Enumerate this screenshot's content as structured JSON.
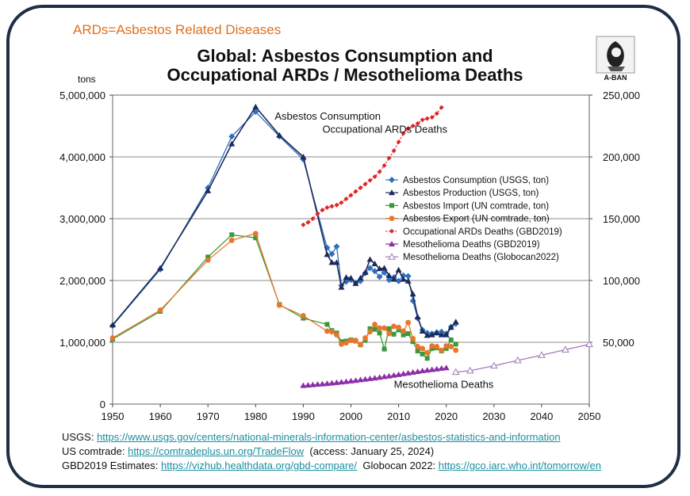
{
  "note": "ARDs=Asbestos Related Diseases",
  "title_line1": "Global: Asbestos Consumption and",
  "title_line2": "Occupational ARDs / Mesothelioma Deaths",
  "logo_text": "A-BAN",
  "sources": {
    "usgs_label": "USGS: ",
    "usgs_url": "https://www.usgs.gov/centers/national-minerals-information-center/asbestos-statistics-and-information",
    "comtrade_label": "US comtrade: ",
    "comtrade_url": "https://comtradeplus.un.org/TradeFlow",
    "comtrade_access": "  (access: January 25, 2024)",
    "gbd_label": "GBD2019 Estimates: ",
    "gbd_url": "https://vizhub.healthdata.org/gbd-compare/",
    "globocan_label": "  Globocan 2022: ",
    "globocan_url": "https://gco.iarc.who.int/tomorrow/en"
  },
  "colors": {
    "consumption": "#2f6fbd",
    "production": "#1c2a5a",
    "import": "#3a9a3a",
    "export": "#e8762d",
    "ards": "#e02424",
    "meso": "#8b2da8",
    "globocan": "#a07ab8",
    "frame": "#1e2e44",
    "note": "#e0701e"
  },
  "chart_data": {
    "type": "line",
    "left_axis_unit": "tons",
    "yleft_lim": [
      0,
      5000000
    ],
    "yright_lim": [
      0,
      250000
    ],
    "xlim": [
      1950,
      2050
    ],
    "x_ticks": [
      1950,
      1960,
      1970,
      1980,
      1990,
      2000,
      2010,
      2020,
      2030,
      2040,
      2050
    ],
    "yleft_ticks": [
      0,
      1000000,
      2000000,
      3000000,
      4000000,
      5000000
    ],
    "yleft_tick_labels": [
      "0",
      "1,000,000",
      "2,000,000",
      "3,000,000",
      "4,000,000",
      "5,000,000"
    ],
    "yright_ticks": [
      50000,
      100000,
      150000,
      200000,
      250000
    ],
    "yright_tick_labels": [
      "50,000",
      "100,000",
      "150,000",
      "200,000",
      "250,000"
    ],
    "grid": "horizontal",
    "legend_position": "center-right",
    "annotations": [
      {
        "text": "Asbestos Consumption",
        "x": 1984,
        "y": 4600000
      },
      {
        "text": "Occupational ARDs Deaths",
        "x": 1994,
        "y": 4390000
      },
      {
        "text": "Mesothelioma Deaths",
        "x": 2009,
        "y": 260000
      }
    ],
    "series": [
      {
        "name": "Asbestos Consumption (USGS, ton)",
        "axis": "left",
        "style": "consumption",
        "marker": "diamond",
        "x": [
          1950,
          1960,
          1970,
          1975,
          1980,
          1985,
          1990,
          1995,
          1996,
          1997,
          1998,
          1999,
          2000,
          2001,
          2002,
          2003,
          2004,
          2005,
          2006,
          2007,
          2008,
          2009,
          2010,
          2011,
          2012,
          2013,
          2014,
          2015,
          2016,
          2017,
          2018,
          2019,
          2020,
          2021,
          2022
        ],
        "y": [
          1270000,
          2180000,
          3500000,
          4330000,
          4730000,
          4330000,
          3960000,
          2530000,
          2430000,
          2550000,
          1920000,
          1980000,
          2010000,
          1960000,
          1990000,
          2120000,
          2200000,
          2150000,
          2060000,
          2130000,
          2010000,
          2050000,
          1990000,
          2080000,
          2070000,
          1670000,
          1390000,
          1200000,
          1150000,
          1140000,
          1160000,
          1170000,
          1140000,
          1250000,
          1300000
        ]
      },
      {
        "name": "Asbestos Production (USGS, ton)",
        "axis": "left",
        "style": "production",
        "marker": "triangle",
        "x": [
          1950,
          1960,
          1970,
          1975,
          1980,
          1985,
          1990,
          1995,
          1996,
          1997,
          1998,
          1999,
          2000,
          2001,
          2002,
          2003,
          2004,
          2005,
          2006,
          2007,
          2008,
          2009,
          2010,
          2011,
          2012,
          2013,
          2014,
          2015,
          2016,
          2017,
          2018,
          2019,
          2020,
          2021,
          2022
        ],
        "y": [
          1280000,
          2200000,
          3450000,
          4210000,
          4810000,
          4350000,
          4000000,
          2420000,
          2290000,
          2290000,
          1890000,
          2050000,
          2040000,
          1950000,
          2040000,
          2130000,
          2340000,
          2270000,
          2190000,
          2200000,
          2080000,
          2020000,
          2170000,
          2020000,
          1990000,
          1780000,
          1410000,
          1180000,
          1110000,
          1120000,
          1150000,
          1120000,
          1120000,
          1240000,
          1330000
        ]
      },
      {
        "name": "Asbestos Import (UN comtrade, ton)",
        "axis": "left",
        "style": "import",
        "marker": "square",
        "x": [
          1950,
          1960,
          1970,
          1975,
          1980,
          1985,
          1990,
          1995,
          1996,
          1997,
          1998,
          1999,
          2000,
          2001,
          2002,
          2003,
          2004,
          2005,
          2006,
          2007,
          2008,
          2009,
          2010,
          2011,
          2012,
          2013,
          2014,
          2015,
          2016,
          2017,
          2018,
          2019,
          2020,
          2021,
          2022
        ],
        "y": [
          1050000,
          1500000,
          2380000,
          2740000,
          2690000,
          1610000,
          1390000,
          1290000,
          1190000,
          1150000,
          1010000,
          1020000,
          1040000,
          1020000,
          960000,
          1030000,
          1220000,
          1210000,
          1150000,
          890000,
          1220000,
          1130000,
          1200000,
          1120000,
          1140000,
          1010000,
          860000,
          810000,
          740000,
          900000,
          910000,
          860000,
          900000,
          1040000,
          970000
        ]
      },
      {
        "name": "Asbestos Export (UN comtrade, ton)",
        "axis": "left",
        "style": "export",
        "marker": "circle",
        "x": [
          1950,
          1960,
          1970,
          1975,
          1980,
          1985,
          1990,
          1995,
          1996,
          1997,
          1998,
          1999,
          2000,
          2001,
          2002,
          2003,
          2004,
          2005,
          2006,
          2007,
          2008,
          2009,
          2010,
          2011,
          2012,
          2013,
          2014,
          2015,
          2016,
          2017,
          2018,
          2019,
          2020,
          2021,
          2022
        ],
        "y": [
          1070000,
          1520000,
          2330000,
          2650000,
          2760000,
          1600000,
          1430000,
          1180000,
          1170000,
          1120000,
          970000,
          990000,
          1030000,
          1030000,
          960000,
          1070000,
          1170000,
          1290000,
          1230000,
          1230000,
          1140000,
          1260000,
          1240000,
          1180000,
          1320000,
          1060000,
          930000,
          900000,
          830000,
          940000,
          930000,
          870000,
          940000,
          930000,
          870000
        ]
      },
      {
        "name": "Occupational ARDs Deaths (GBD2019)",
        "axis": "right",
        "style": "ards",
        "marker": "small-diamond",
        "x": [
          1990,
          1991,
          1992,
          1993,
          1994,
          1995,
          1996,
          1997,
          1998,
          1999,
          2000,
          2001,
          2002,
          2003,
          2004,
          2005,
          2006,
          2007,
          2008,
          2009,
          2010,
          2011,
          2012,
          2013,
          2014,
          2015,
          2016,
          2017,
          2018,
          2019
        ],
        "y": [
          145000,
          147000,
          150000,
          154000,
          157000,
          159000,
          160000,
          161000,
          163000,
          166000,
          169000,
          172000,
          175000,
          178000,
          181000,
          184000,
          188000,
          193000,
          199000,
          205000,
          212000,
          219000,
          223000,
          225000,
          227000,
          230000,
          231000,
          232000,
          235000,
          240000
        ]
      },
      {
        "name": "Mesothelioma Deaths (GBD2019)",
        "axis": "right",
        "style": "meso",
        "marker": "triangle",
        "x": [
          1990,
          1991,
          1992,
          1993,
          1994,
          1995,
          1996,
          1997,
          1998,
          1999,
          2000,
          2001,
          2002,
          2003,
          2004,
          2005,
          2006,
          2007,
          2008,
          2009,
          2010,
          2011,
          2012,
          2013,
          2014,
          2015,
          2016,
          2017,
          2018,
          2019,
          2020
        ],
        "y": [
          15000,
          15300,
          15600,
          16000,
          16300,
          16600,
          17000,
          17400,
          17800,
          18200,
          18700,
          19100,
          19600,
          20100,
          20600,
          21100,
          21600,
          22200,
          22700,
          23300,
          23900,
          24500,
          25100,
          25700,
          26300,
          26900,
          27400,
          27900,
          28400,
          28900,
          29300
        ]
      },
      {
        "name": "Mesothelioma Deaths (Globocan2022)",
        "axis": "right",
        "style": "globocan",
        "marker": "open-triangle",
        "x": [
          2022,
          2025,
          2030,
          2035,
          2040,
          2045,
          2050
        ],
        "y": [
          25900,
          27000,
          31000,
          35300,
          39600,
          44000,
          48400
        ]
      }
    ]
  }
}
